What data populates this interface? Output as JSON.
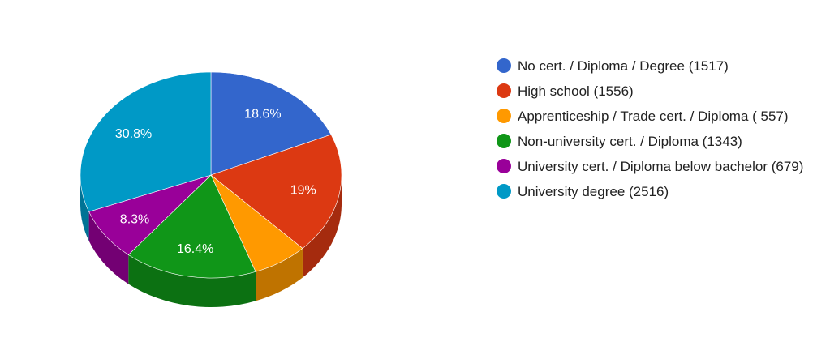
{
  "chart_data": {
    "type": "pie",
    "title": "",
    "legend_position": "right",
    "slices": [
      {
        "label": "No cert. / Diploma / Degree (1517)",
        "value": 1517,
        "percent_label": "18.6%",
        "color": "#3366cc",
        "side_color": "#264d99"
      },
      {
        "label": "High school (1556)",
        "value": 1556,
        "percent_label": "19%",
        "color": "#dc3912",
        "side_color": "#a52b0e"
      },
      {
        "label": "Apprenticeship / Trade cert. / Diploma ( 557)",
        "value": 557,
        "percent_label": "",
        "color": "#ff9900",
        "side_color": "#bf7300"
      },
      {
        "label": "Non-university cert. / Diploma (1343)",
        "value": 1343,
        "percent_label": "16.4%",
        "color": "#109618",
        "side_color": "#0c7112"
      },
      {
        "label": "University cert. / Diploma below bachelor (679)",
        "value": 679,
        "percent_label": "8.3%",
        "color": "#990099",
        "side_color": "#730073"
      },
      {
        "label": "University degree (2516)",
        "value": 2516,
        "percent_label": "30.8%",
        "color": "#0099c6",
        "side_color": "#007395"
      }
    ]
  }
}
